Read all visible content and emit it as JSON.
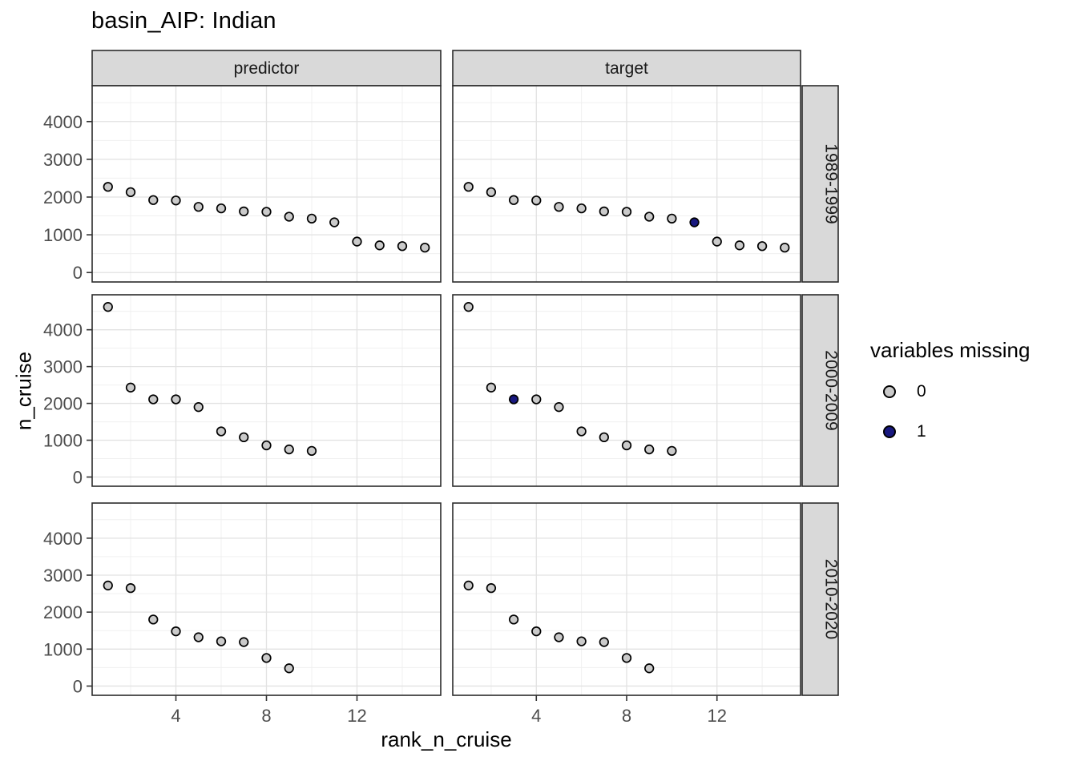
{
  "title": "basin_AIP: Indian",
  "legend": {
    "title": "variables missing",
    "entries": [
      {
        "label": "0",
        "color": "#cacaca"
      },
      {
        "label": "1",
        "color": "#18187f"
      }
    ]
  },
  "chart_data": {
    "type": "scatter",
    "title": "basin_AIP: Indian",
    "xlabel": "rank_n_cruise",
    "ylabel": "n_cruise",
    "facet_columns": [
      "predictor",
      "target"
    ],
    "facet_rows": [
      "1989-1999",
      "2000-2009",
      "2010-2020"
    ],
    "legend_position": "right",
    "grid": true,
    "xlim": [
      0.3,
      15.7
    ],
    "ylim": [
      -250,
      4950
    ],
    "x_ticks": [
      4,
      8,
      12
    ],
    "x_minor_gridlines": [
      2,
      6,
      10,
      14
    ],
    "y_ticks": [
      0,
      1000,
      2000,
      3000,
      4000
    ],
    "y_minor_gridlines": [
      500,
      1500,
      2500,
      3500,
      4500
    ],
    "point_colors": {
      "0": "#cacaca",
      "1": "#18187f"
    },
    "panels": [
      {
        "row": "1989-1999",
        "col": "predictor",
        "x": [
          1,
          2,
          3,
          4,
          5,
          6,
          7,
          8,
          9,
          10,
          11,
          12,
          13,
          14,
          15
        ],
        "y": [
          2270,
          2130,
          1920,
          1910,
          1740,
          1700,
          1620,
          1610,
          1480,
          1430,
          1330,
          820,
          720,
          700,
          660
        ],
        "missing": [
          0,
          0,
          0,
          0,
          0,
          0,
          0,
          0,
          0,
          0,
          0,
          0,
          0,
          0,
          0
        ]
      },
      {
        "row": "1989-1999",
        "col": "target",
        "x": [
          1,
          2,
          3,
          4,
          5,
          6,
          7,
          8,
          9,
          10,
          11,
          12,
          13,
          14,
          15
        ],
        "y": [
          2270,
          2130,
          1920,
          1910,
          1740,
          1700,
          1620,
          1610,
          1480,
          1430,
          1330,
          820,
          720,
          700,
          660
        ],
        "missing": [
          0,
          0,
          0,
          0,
          0,
          0,
          0,
          0,
          0,
          0,
          1,
          0,
          0,
          0,
          0
        ]
      },
      {
        "row": "2000-2009",
        "col": "predictor",
        "x": [
          1,
          2,
          3,
          4,
          5,
          6,
          7,
          8,
          9,
          10
        ],
        "y": [
          4620,
          2430,
          2110,
          2110,
          1900,
          1240,
          1080,
          860,
          750,
          710
        ],
        "missing": [
          0,
          0,
          0,
          0,
          0,
          0,
          0,
          0,
          0,
          0
        ]
      },
      {
        "row": "2000-2009",
        "col": "target",
        "x": [
          1,
          2,
          3,
          4,
          5,
          6,
          7,
          8,
          9,
          10
        ],
        "y": [
          4620,
          2430,
          2110,
          2110,
          1900,
          1240,
          1080,
          860,
          750,
          710
        ],
        "missing": [
          0,
          0,
          1,
          0,
          0,
          0,
          0,
          0,
          0,
          0
        ]
      },
      {
        "row": "2010-2020",
        "col": "predictor",
        "x": [
          1,
          2,
          3,
          4,
          5,
          6,
          7,
          8,
          9
        ],
        "y": [
          2720,
          2650,
          1800,
          1480,
          1320,
          1210,
          1190,
          760,
          480
        ],
        "missing": [
          0,
          0,
          0,
          0,
          0,
          0,
          0,
          0,
          0
        ]
      },
      {
        "row": "2010-2020",
        "col": "target",
        "x": [
          1,
          2,
          3,
          4,
          5,
          6,
          7,
          8,
          9
        ],
        "y": [
          2720,
          2650,
          1800,
          1480,
          1320,
          1210,
          1190,
          760,
          480
        ],
        "missing": [
          0,
          0,
          0,
          0,
          0,
          0,
          0,
          0,
          0
        ]
      }
    ],
    "style_colors": {
      "strip_fill": "#d9d9d9",
      "panel_border": "#2b2b2b",
      "grid_major": "#e2e2e2",
      "grid_minor": "#f0f0f0",
      "tick_color": "#333333",
      "point_stroke": "#000000"
    }
  }
}
